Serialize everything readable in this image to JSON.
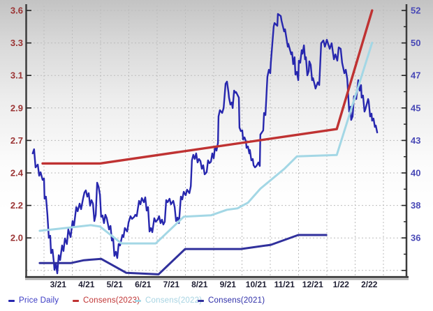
{
  "chart_data": {
    "type": "line",
    "title": "",
    "grid": true,
    "x_axis": {
      "unit": "months since 2021-03-01",
      "labels": [
        "3/21",
        "4/21",
        "5/21",
        "6/21",
        "7/21",
        "8/21",
        "9/21",
        "10/21",
        "11/21",
        "12/21",
        "1/22",
        "2/22"
      ]
    },
    "left_axis": {
      "labels": [
        "3.6",
        "3.3",
        "3.1",
        "2.9",
        "2.7",
        "2.4",
        "2.2",
        "2.0"
      ],
      "top_value": 3.6,
      "bottom_value": 2.0,
      "color": "#9b3434"
    },
    "right_axis": {
      "labels": [
        "52",
        "50",
        "47",
        "45",
        "43",
        "40",
        "38",
        "36"
      ],
      "top_value": 52,
      "bottom_value": 36,
      "color": "#4949b6"
    },
    "legend": [
      {
        "label": "Price Daily",
        "color": "#2727ae",
        "text_color": "#3a3ac4"
      },
      {
        "label": "Consens(2023)",
        "color": "#bf3232",
        "text_color": "#c03333"
      },
      {
        "label": "Consens(2022)",
        "color": "#a3d7e5",
        "text_color": "#a6d3e2"
      },
      {
        "label": "Consens(2021)",
        "color": "#30309c",
        "text_color": "#2d2da8"
      }
    ],
    "series": [
      {
        "id": "price-daily",
        "name": "Price Daily",
        "axis": "right",
        "color": "#2727ae",
        "width": 2.4,
        "points": [
          [
            -0.4,
            42.0
          ],
          [
            -0.35,
            42.3
          ],
          [
            -0.3,
            41.0
          ],
          [
            -0.22,
            41.2
          ],
          [
            -0.17,
            40.4
          ],
          [
            -0.12,
            40.65
          ],
          [
            -0.05,
            40.1
          ],
          [
            0.0,
            40.2
          ],
          [
            0.02,
            38.75
          ],
          [
            0.07,
            38.9
          ],
          [
            0.12,
            37.6
          ],
          [
            0.17,
            35.95
          ],
          [
            0.22,
            36.1
          ],
          [
            0.25,
            34.85
          ],
          [
            0.3,
            35.1
          ],
          [
            0.35,
            34.15
          ],
          [
            0.37,
            33.65
          ],
          [
            0.42,
            34.1
          ],
          [
            0.47,
            33.4
          ],
          [
            0.52,
            34.7
          ],
          [
            0.57,
            34.35
          ],
          [
            0.64,
            35.4
          ],
          [
            0.69,
            35.0
          ],
          [
            0.74,
            35.9
          ],
          [
            0.81,
            35.5
          ],
          [
            0.86,
            36.55
          ],
          [
            0.94,
            36.0
          ],
          [
            1.01,
            37.15
          ],
          [
            1.06,
            36.8
          ],
          [
            1.14,
            38.15
          ],
          [
            1.19,
            37.85
          ],
          [
            1.26,
            38.4
          ],
          [
            1.31,
            38.0
          ],
          [
            1.38,
            38.75
          ],
          [
            1.43,
            39.2
          ],
          [
            1.48,
            39.35
          ],
          [
            1.53,
            38.9
          ],
          [
            1.58,
            39.15
          ],
          [
            1.63,
            38.25
          ],
          [
            1.68,
            38.65
          ],
          [
            1.73,
            38.4
          ],
          [
            1.78,
            37.15
          ],
          [
            1.83,
            37.6
          ],
          [
            1.88,
            39.9
          ],
          [
            1.93,
            39.6
          ],
          [
            1.98,
            39.0
          ],
          [
            2.02,
            37.45
          ],
          [
            2.07,
            37.55
          ],
          [
            2.12,
            37.0
          ],
          [
            2.17,
            37.6
          ],
          [
            2.22,
            37.35
          ],
          [
            2.3,
            36.55
          ],
          [
            2.35,
            36.8
          ],
          [
            2.4,
            35.75
          ],
          [
            2.44,
            36.05
          ],
          [
            2.49,
            34.65
          ],
          [
            2.54,
            34.95
          ],
          [
            2.59,
            34.5
          ],
          [
            2.64,
            35.5
          ],
          [
            2.69,
            35.4
          ],
          [
            2.77,
            36.15
          ],
          [
            2.81,
            36.0
          ],
          [
            2.86,
            36.65
          ],
          [
            2.94,
            36.4
          ],
          [
            2.99,
            37.05
          ],
          [
            3.06,
            37.5
          ],
          [
            3.11,
            37.3
          ],
          [
            3.19,
            37.45
          ],
          [
            3.23,
            37.6
          ],
          [
            3.28,
            37.5
          ],
          [
            3.36,
            38.6
          ],
          [
            3.41,
            38.35
          ],
          [
            3.46,
            38.8
          ],
          [
            3.53,
            38.5
          ],
          [
            3.58,
            38.85
          ],
          [
            3.63,
            37.9
          ],
          [
            3.68,
            38.15
          ],
          [
            3.73,
            36.4
          ],
          [
            3.78,
            36.65
          ],
          [
            3.83,
            36.35
          ],
          [
            3.9,
            37.35
          ],
          [
            3.95,
            37.1
          ],
          [
            4.02,
            37.25
          ],
          [
            4.07,
            37.5
          ],
          [
            4.12,
            37.0
          ],
          [
            4.17,
            37.25
          ],
          [
            4.22,
            36.9
          ],
          [
            4.27,
            37.1
          ],
          [
            4.32,
            38.65
          ],
          [
            4.37,
            38.5
          ],
          [
            4.44,
            38.75
          ],
          [
            4.49,
            38.35
          ],
          [
            4.57,
            38.6
          ],
          [
            4.62,
            38.15
          ],
          [
            4.67,
            37.15
          ],
          [
            4.72,
            37.4
          ],
          [
            4.77,
            37.0
          ],
          [
            4.84,
            38.9
          ],
          [
            4.89,
            38.7
          ],
          [
            4.94,
            39.25
          ],
          [
            5.01,
            39.0
          ],
          [
            5.06,
            39.4
          ],
          [
            5.14,
            39.15
          ],
          [
            5.19,
            39.65
          ],
          [
            5.23,
            41.5
          ],
          [
            5.28,
            41.9
          ],
          [
            5.33,
            41.6
          ],
          [
            5.38,
            42.0
          ],
          [
            5.43,
            41.35
          ],
          [
            5.48,
            41.6
          ],
          [
            5.53,
            41.45
          ],
          [
            5.58,
            40.9
          ],
          [
            5.63,
            41.15
          ],
          [
            5.68,
            40.5
          ],
          [
            5.75,
            40.65
          ],
          [
            5.8,
            41.5
          ],
          [
            5.85,
            41.3
          ],
          [
            5.9,
            41.4
          ],
          [
            5.95,
            42.0
          ],
          [
            6.0,
            41.65
          ],
          [
            6.05,
            42.5
          ],
          [
            6.1,
            42.2
          ],
          [
            6.15,
            42.75
          ],
          [
            6.17,
            44.65
          ],
          [
            6.22,
            45.1
          ],
          [
            6.3,
            44.9
          ],
          [
            6.35,
            45.25
          ],
          [
            6.42,
            47.0
          ],
          [
            6.47,
            47.15
          ],
          [
            6.52,
            46.4
          ],
          [
            6.54,
            46.0
          ],
          [
            6.59,
            45.5
          ],
          [
            6.64,
            45.65
          ],
          [
            6.67,
            45.25
          ],
          [
            6.72,
            46.5
          ],
          [
            6.77,
            46.35
          ],
          [
            6.79,
            46.4
          ],
          [
            6.89,
            46.0
          ],
          [
            6.91,
            43.85
          ],
          [
            6.96,
            43.6
          ],
          [
            7.01,
            43.65
          ],
          [
            7.04,
            43.0
          ],
          [
            7.09,
            43.15
          ],
          [
            7.14,
            42.85
          ],
          [
            7.16,
            42.4
          ],
          [
            7.21,
            42.5
          ],
          [
            7.26,
            42.0
          ],
          [
            7.28,
            42.25
          ],
          [
            7.33,
            41.5
          ],
          [
            7.38,
            41.6
          ],
          [
            7.41,
            41.15
          ],
          [
            7.46,
            41.0
          ],
          [
            7.51,
            41.1
          ],
          [
            7.58,
            41.35
          ],
          [
            7.63,
            41.1
          ],
          [
            7.65,
            43.35
          ],
          [
            7.7,
            43.5
          ],
          [
            7.75,
            43.65
          ],
          [
            7.78,
            44.9
          ],
          [
            7.83,
            44.75
          ],
          [
            7.88,
            46.75
          ],
          [
            7.9,
            47.5
          ],
          [
            7.95,
            48.0
          ],
          [
            8.0,
            47.75
          ],
          [
            8.02,
            48.5
          ],
          [
            8.12,
            51.1
          ],
          [
            8.15,
            51.35
          ],
          [
            8.25,
            51.15
          ],
          [
            8.27,
            52.0
          ],
          [
            8.37,
            51.85
          ],
          [
            8.4,
            51.5
          ],
          [
            8.49,
            50.75
          ],
          [
            8.52,
            50.9
          ],
          [
            8.62,
            49.65
          ],
          [
            8.64,
            49.85
          ],
          [
            8.74,
            49.1
          ],
          [
            8.77,
            49.25
          ],
          [
            8.81,
            48.4
          ],
          [
            8.86,
            48.9
          ],
          [
            8.89,
            47.65
          ],
          [
            8.94,
            47.85
          ],
          [
            8.99,
            47.25
          ],
          [
            9.01,
            48.65
          ],
          [
            9.06,
            48.5
          ],
          [
            9.11,
            49.4
          ],
          [
            9.14,
            49.15
          ],
          [
            9.19,
            49.75
          ],
          [
            9.23,
            48.75
          ],
          [
            9.26,
            48.9
          ],
          [
            9.31,
            47.6
          ],
          [
            9.36,
            47.9
          ],
          [
            9.38,
            48.6
          ],
          [
            9.43,
            48.35
          ],
          [
            9.48,
            47.25
          ],
          [
            9.51,
            47.4
          ],
          [
            9.56,
            47.0
          ],
          [
            9.6,
            46.65
          ],
          [
            9.68,
            47.1
          ],
          [
            9.73,
            46.9
          ],
          [
            9.8,
            49.9
          ],
          [
            9.88,
            50.1
          ],
          [
            9.93,
            49.65
          ],
          [
            10.0,
            50.15
          ],
          [
            10.1,
            49.5
          ],
          [
            10.17,
            49.9
          ],
          [
            10.25,
            48.75
          ],
          [
            10.3,
            49.1
          ],
          [
            10.37,
            48.65
          ],
          [
            10.42,
            49.6
          ],
          [
            10.49,
            49.5
          ],
          [
            10.54,
            48.5
          ],
          [
            10.62,
            47.75
          ],
          [
            10.67,
            48.0
          ],
          [
            10.72,
            47.35
          ],
          [
            10.79,
            45.0
          ],
          [
            10.84,
            45.35
          ],
          [
            10.86,
            44.4
          ],
          [
            10.91,
            44.65
          ],
          [
            10.96,
            46.1
          ],
          [
            11.04,
            45.9
          ],
          [
            11.09,
            46.85
          ],
          [
            11.11,
            47.25
          ],
          [
            11.16,
            46.5
          ],
          [
            11.21,
            46.9
          ],
          [
            11.23,
            46.0
          ],
          [
            11.28,
            46.15
          ],
          [
            11.33,
            45.0
          ],
          [
            11.36,
            45.15
          ],
          [
            11.46,
            45.9
          ],
          [
            11.48,
            45.75
          ],
          [
            11.53,
            44.65
          ],
          [
            11.58,
            44.85
          ],
          [
            11.6,
            44.35
          ],
          [
            11.65,
            44.5
          ],
          [
            11.7,
            43.9
          ],
          [
            11.73,
            44.0
          ],
          [
            11.78,
            43.5
          ]
        ]
      },
      {
        "id": "consens-2021",
        "name": "Consens(2021)",
        "axis": "left",
        "color": "#30309c",
        "width": 3,
        "points": [
          [
            -0.15,
            1.8
          ],
          [
            0.94,
            1.8
          ],
          [
            1.41,
            1.82
          ],
          [
            2.02,
            1.83
          ],
          [
            2.91,
            1.73
          ],
          [
            4.05,
            1.72
          ],
          [
            4.99,
            1.9
          ],
          [
            6.96,
            1.9
          ],
          [
            8.02,
            1.93
          ],
          [
            8.99,
            2.0
          ],
          [
            9.98,
            2.0
          ]
        ]
      },
      {
        "id": "consens-2022",
        "name": "Consens(2022)",
        "axis": "left",
        "color": "#a3d7e5",
        "width": 3,
        "points": [
          [
            -0.15,
            2.03
          ],
          [
            0.79,
            2.05
          ],
          [
            1.65,
            2.07
          ],
          [
            1.98,
            2.06
          ],
          [
            2.74,
            1.94
          ],
          [
            3.95,
            1.94
          ],
          [
            4.94,
            2.13
          ],
          [
            5.9,
            2.14
          ],
          [
            6.47,
            2.18
          ],
          [
            6.84,
            2.19
          ],
          [
            7.21,
            2.23
          ],
          [
            7.65,
            2.33
          ],
          [
            8.49,
            2.47
          ],
          [
            8.94,
            2.56
          ],
          [
            10.35,
            2.57
          ],
          [
            11.6,
            3.37
          ]
        ]
      },
      {
        "id": "consens-2023",
        "name": "Consens(2023)",
        "axis": "left",
        "color": "#bf3232",
        "width": 3.4,
        "points": [
          [
            -0.05,
            2.51
          ],
          [
            1.98,
            2.51
          ],
          [
            10.35,
            2.755
          ],
          [
            11.6,
            3.6
          ]
        ]
      }
    ]
  }
}
